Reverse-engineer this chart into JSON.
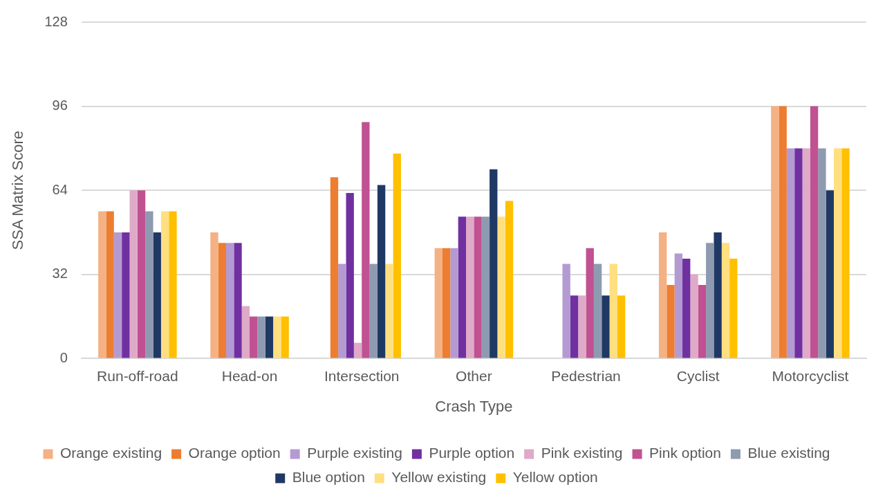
{
  "chart_data": {
    "type": "bar",
    "xlabel": "Crash Type",
    "ylabel": "SSA Matrix Score",
    "categories": [
      "Run-off-road",
      "Head-on",
      "Intersection",
      "Other",
      "Pedestrian",
      "Cyclist",
      "Motorcyclist"
    ],
    "series": [
      {
        "name": "Orange existing",
        "color": "#f4b183",
        "values": [
          56,
          48,
          0,
          42,
          0,
          48,
          96
        ]
      },
      {
        "name": "Orange option",
        "color": "#ed7d31",
        "values": [
          56,
          44,
          69,
          42,
          0,
          28,
          96
        ]
      },
      {
        "name": "Purple existing",
        "color": "#b49ad2",
        "values": [
          48,
          44,
          36,
          42,
          36,
          40,
          80
        ]
      },
      {
        "name": "Purple option",
        "color": "#7030a0",
        "values": [
          48,
          44,
          63,
          54,
          24,
          38,
          80
        ]
      },
      {
        "name": "Pink existing",
        "color": "#dfa9c8",
        "values": [
          64,
          20,
          6,
          54,
          24,
          32,
          80
        ]
      },
      {
        "name": "Pink option",
        "color": "#c05192",
        "values": [
          64,
          16,
          90,
          54,
          42,
          28,
          96
        ]
      },
      {
        "name": "Blue existing",
        "color": "#8e9ab0",
        "values": [
          56,
          16,
          36,
          54,
          36,
          44,
          80
        ]
      },
      {
        "name": "Blue option",
        "color": "#203864",
        "values": [
          48,
          16,
          66,
          72,
          24,
          48,
          64
        ]
      },
      {
        "name": "Yellow existing",
        "color": "#ffdf7f",
        "values": [
          56,
          16,
          36,
          54,
          36,
          44,
          80
        ]
      },
      {
        "name": "Yellow option",
        "color": "#ffc000",
        "values": [
          56,
          16,
          78,
          60,
          24,
          38,
          80
        ]
      }
    ],
    "ylim": [
      0,
      128
    ],
    "yticks": [
      0,
      32,
      64,
      96,
      128
    ],
    "grid": "y",
    "legend": "bottom"
  }
}
